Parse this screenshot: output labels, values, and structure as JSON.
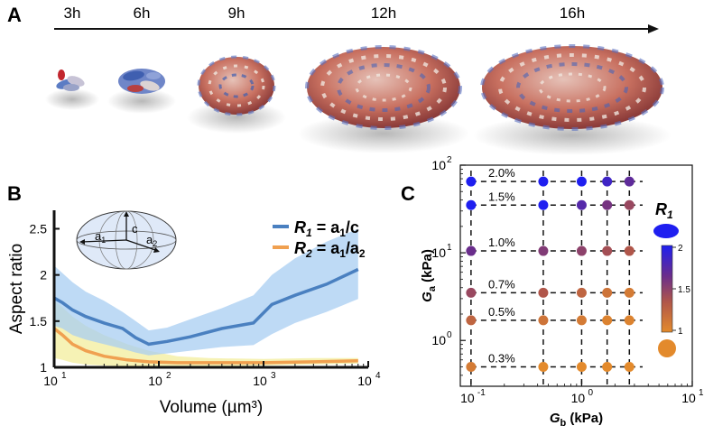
{
  "panel_labels": {
    "a": "A",
    "b": "B",
    "c": "C"
  },
  "panel_a": {
    "timepoints": [
      "3h",
      "6h",
      "9h",
      "12h",
      "16h"
    ]
  },
  "panel_b": {
    "inset": {
      "a1": "a1",
      "c": "c",
      "a2": "a2"
    },
    "legend": {
      "r1_name": "R",
      "r1_sub": "1",
      "r1_formula_pre": " = a",
      "r1_formula_sub": "1",
      "r1_formula_post": "/c",
      "r2_name": "R",
      "r2_sub": "2",
      "r2_formula_pre": " = a",
      "r2_formula_sub": "1",
      "r2_formula_post": "/a",
      "r2_formula_sub2": "2"
    },
    "colors": {
      "r1": "#4a80c0",
      "r1_band": "#a8cdf2",
      "r2": "#f0a050",
      "r2_band": "#f4f0a8"
    }
  },
  "panel_c": {
    "colorbar": {
      "title": "R",
      "title_sub": "1",
      "ticks": [
        "2",
        "1.5",
        "1"
      ]
    },
    "colors": {
      "high": "#1f1ff0",
      "mid": "#6a2d8c",
      "low": "#e38a2c"
    }
  },
  "chart_data": [
    {
      "type": "line",
      "panel": "B",
      "title": "",
      "xlabel": "Volume (µm³)",
      "ylabel": "Aspect ratio",
      "xscale": "log",
      "xlim": [
        10,
        10000
      ],
      "ylim": [
        1,
        2.7
      ],
      "xticks": [
        "10",
        "10",
        "10",
        "10"
      ],
      "xtick_exponents": [
        "1",
        "2",
        "3",
        "4"
      ],
      "yticks": [
        "1",
        "1.5",
        "2",
        "2.5"
      ],
      "legend_position": "top-right",
      "series": [
        {
          "name": "R1 = a1/c",
          "x": [
            10,
            12,
            15,
            20,
            30,
            45,
            60,
            80,
            120,
            200,
            400,
            800,
            1200,
            2000,
            4000,
            8000
          ],
          "y": [
            1.75,
            1.7,
            1.62,
            1.55,
            1.48,
            1.42,
            1.32,
            1.25,
            1.28,
            1.33,
            1.42,
            1.48,
            1.68,
            1.78,
            1.9,
            2.06
          ],
          "upper": [
            2.1,
            2.02,
            1.92,
            1.82,
            1.72,
            1.6,
            1.5,
            1.4,
            1.43,
            1.52,
            1.64,
            1.78,
            2.0,
            2.18,
            2.36,
            2.5
          ],
          "lower": [
            1.45,
            1.42,
            1.35,
            1.3,
            1.25,
            1.2,
            1.16,
            1.13,
            1.15,
            1.18,
            1.22,
            1.24,
            1.36,
            1.48,
            1.6,
            1.74
          ]
        },
        {
          "name": "R2 = a1/a2",
          "x": [
            10,
            12,
            15,
            20,
            30,
            50,
            80,
            150,
            300,
            1000,
            3000,
            8000
          ],
          "y": [
            1.42,
            1.35,
            1.25,
            1.18,
            1.12,
            1.08,
            1.06,
            1.05,
            1.05,
            1.05,
            1.06,
            1.07
          ],
          "upper": [
            1.72,
            1.65,
            1.55,
            1.45,
            1.35,
            1.25,
            1.18,
            1.12,
            1.1,
            1.09,
            1.1,
            1.1
          ],
          "lower": [
            1.1,
            1.08,
            1.05,
            1.03,
            1.02,
            1.01,
            1.01,
            1.01,
            1.01,
            1.02,
            1.03,
            1.04
          ]
        }
      ]
    },
    {
      "type": "scatter",
      "panel": "C",
      "xlabel": "Gb (kPa)",
      "ylabel": "Ga (kPa)",
      "xscale": "log",
      "yscale": "log",
      "xlim": [
        0.08,
        10
      ],
      "ylim": [
        0.3,
        100
      ],
      "xticks": [
        "10",
        "10",
        "10"
      ],
      "xtick_exponents": [
        "-1",
        "0",
        "1"
      ],
      "yticks": [
        "10",
        "10",
        "10"
      ],
      "ytick_exponents": [
        "0",
        "1",
        "2"
      ],
      "gb_values": [
        0.1,
        0.45,
        1.0,
        1.7,
        2.7
      ],
      "ga_values": [
        0.5,
        1.7,
        3.5,
        10.5,
        35,
        65
      ],
      "strain_labels": [
        "0.3%",
        "0.5%",
        "0.7%",
        "1.0%",
        "1.5%",
        "2.0%"
      ],
      "r1_values": [
        [
          1.1,
          1.0,
          1.0,
          1.0,
          1.0
        ],
        [
          1.25,
          1.15,
          1.1,
          1.05,
          1.05
        ],
        [
          1.45,
          1.35,
          1.25,
          1.15,
          1.1
        ],
        [
          1.65,
          1.55,
          1.5,
          1.4,
          1.35
        ],
        [
          2.0,
          2.0,
          1.75,
          1.6,
          1.45
        ],
        [
          2.0,
          2.0,
          2.0,
          1.85,
          1.7
        ]
      ]
    }
  ]
}
